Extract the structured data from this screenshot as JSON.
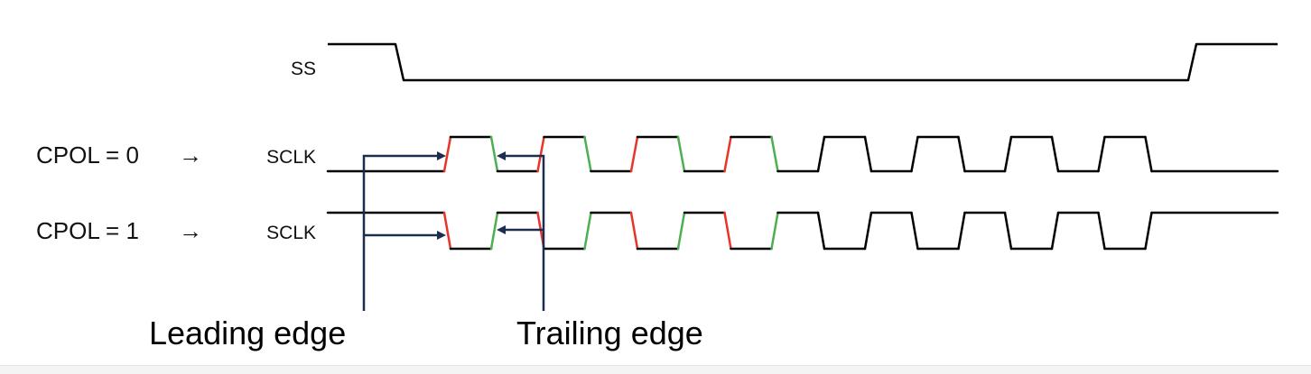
{
  "signals": {
    "ss": {
      "label": "SS"
    },
    "sclk_cpol0": {
      "row_label": "CPOL = 0",
      "arrow_glyph": "→",
      "label": "SCLK",
      "idle_level": "low"
    },
    "sclk_cpol1": {
      "row_label": "CPOL = 1",
      "arrow_glyph": "→",
      "label": "SCLK",
      "idle_level": "high"
    }
  },
  "clock": {
    "cycles": 8,
    "highlighted_cycles": 4
  },
  "annotations": {
    "leading_edge": "Leading edge",
    "trailing_edge": "Trailing edge"
  },
  "colors": {
    "waveform": "#000000",
    "leading_edge": "#e8352a",
    "trailing_edge": "#4caf50",
    "annotation_arrow": "#1d2d4f",
    "text": "#111111"
  }
}
